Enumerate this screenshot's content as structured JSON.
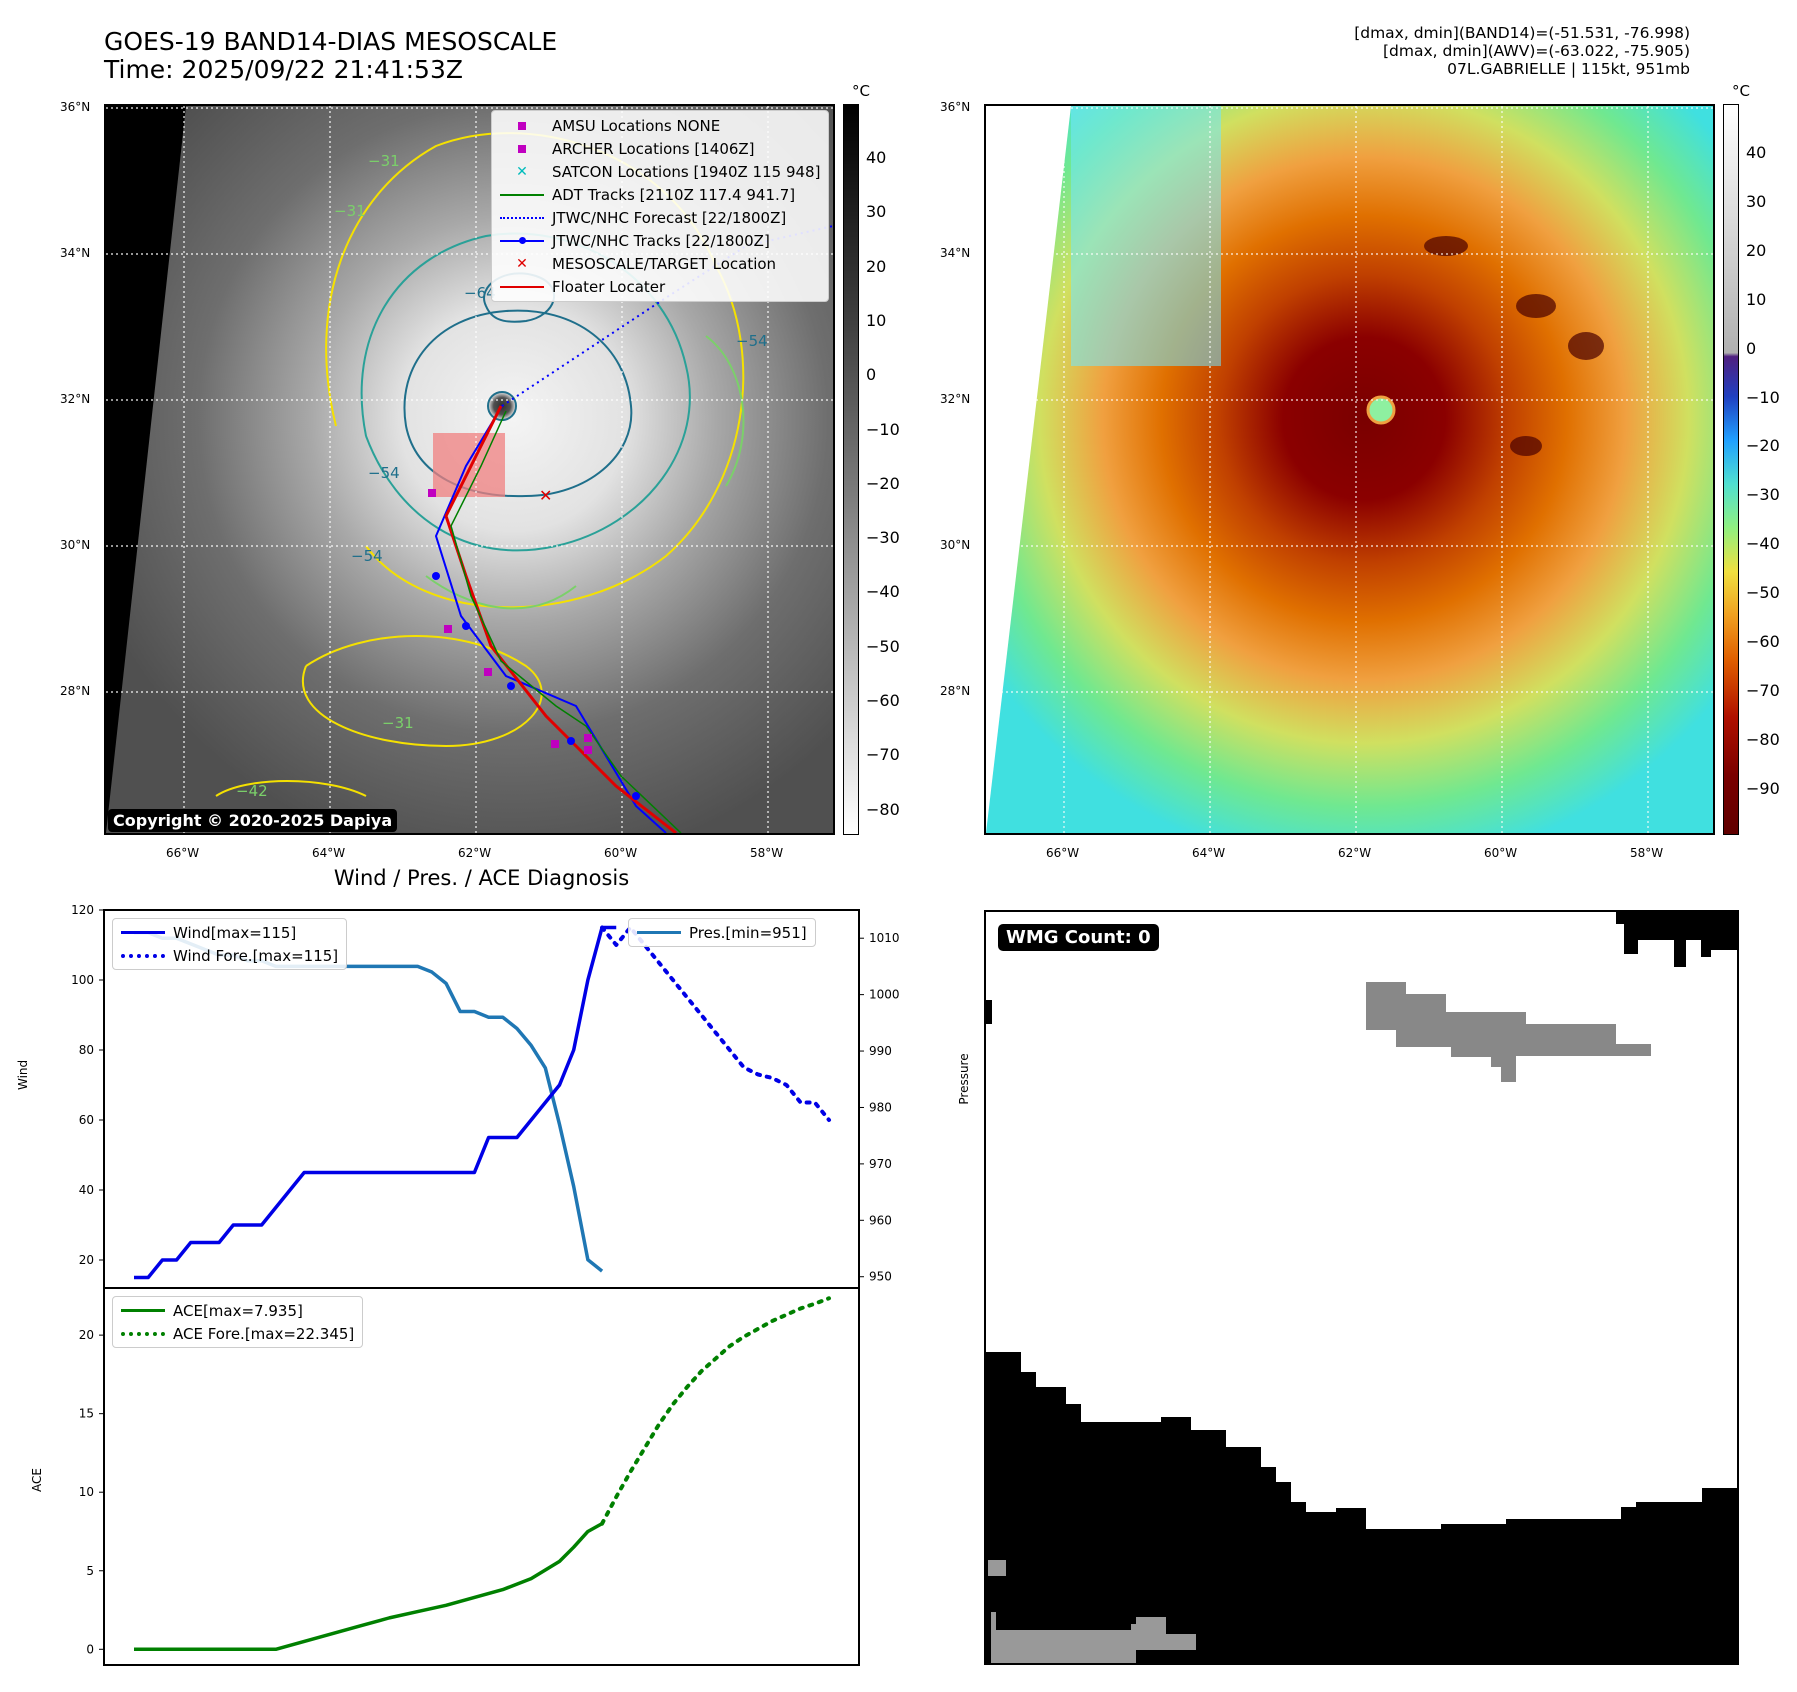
{
  "header": {
    "title_line1": "GOES-19 BAND14-DIAS MESOSCALE",
    "title_line2": "Time: 2025/09/22 21:41:53Z",
    "info_line1": "[dmax, dmin](BAND14)=(-51.531, -76.998)",
    "info_line2": "[dmax, dmin](AWV)=(-63.022, -75.905)",
    "info_line3": "07L.GABRIELLE | 115kt, 951mb"
  },
  "map_axes": {
    "lat_labels": [
      "36°N",
      "34°N",
      "32°N",
      "30°N",
      "28°N"
    ],
    "lon_labels": [
      "66°W",
      "64°W",
      "62°W",
      "60°W",
      "58°W"
    ]
  },
  "colorbar_gray": {
    "unit": "°C",
    "ticks": [
      "40",
      "30",
      "20",
      "10",
      "0",
      "−10",
      "−20",
      "−30",
      "−40",
      "−50",
      "−60",
      "−70",
      "−80"
    ]
  },
  "colorbar_color": {
    "unit": "°C",
    "ticks": [
      "40",
      "30",
      "20",
      "10",
      "0",
      "−10",
      "−20",
      "−30",
      "−40",
      "−50",
      "−60",
      "−70",
      "−80",
      "−90"
    ]
  },
  "map_legend": [
    {
      "label": "AMSU Locations NONE",
      "symbol": "square",
      "color": "#c000c0"
    },
    {
      "label": "ARCHER Locations [1406Z]",
      "symbol": "square",
      "color": "#c000c0"
    },
    {
      "label": "SATCON Locations [1940Z 115 948]",
      "symbol": "x",
      "color": "#00bcbc"
    },
    {
      "label": "ADT Tracks [2110Z 117.4 941.7]",
      "symbol": "line",
      "color": "#008000"
    },
    {
      "label": "JTWC/NHC Forecast [22/1800Z]",
      "symbol": "dotted",
      "color": "#0000ff"
    },
    {
      "label": "JTWC/NHC Tracks [22/1800Z]",
      "symbol": "line-dot",
      "color": "#0000ff"
    },
    {
      "label": "MESOSCALE/TARGET Location",
      "symbol": "x",
      "color": "#e00000"
    },
    {
      "label": "Floater Locater",
      "symbol": "line",
      "color": "#e00000"
    }
  ],
  "contour_labels": [
    "−64",
    "−54",
    "−54",
    "−54",
    "−31",
    "−31",
    "−31",
    "−42"
  ],
  "copyright": "Copyright © 2020-2025 Dapiya",
  "wmg": {
    "label": "WMG Count: 0"
  },
  "colors": {
    "wind": "#0000e6",
    "pressure": "#1f77b4",
    "ace": "#008000"
  },
  "chart_data": [
    {
      "type": "line",
      "title": "Wind / Pres. / ACE Diagnosis",
      "ylabel": "Wind",
      "y2label": "Pressure",
      "ylim": [
        12,
        120
      ],
      "y2lim": [
        948,
        1015
      ],
      "yticks": [
        20,
        40,
        60,
        80,
        100,
        120
      ],
      "y2ticks": [
        950,
        960,
        970,
        980,
        990,
        1000,
        1010
      ],
      "x_count": 50,
      "series": [
        {
          "name": "Wind[max=115]",
          "axis": "left",
          "style": "solid",
          "color": "#0000e6",
          "x": [
            0,
            1,
            2,
            3,
            4,
            5,
            6,
            7,
            8,
            9,
            10,
            11,
            12,
            13,
            14,
            15,
            16,
            17,
            18,
            19,
            20,
            21,
            22,
            23,
            24,
            25,
            26,
            27,
            28,
            29,
            30,
            31,
            32,
            33,
            34
          ],
          "values": [
            15,
            15,
            20,
            20,
            25,
            25,
            25,
            30,
            30,
            30,
            35,
            40,
            45,
            45,
            45,
            45,
            45,
            45,
            45,
            45,
            45,
            45,
            45,
            45,
            45,
            55,
            55,
            55,
            60,
            65,
            70,
            80,
            100,
            115,
            115
          ]
        },
        {
          "name": "Wind Fore.[max=115]",
          "axis": "left",
          "style": "dotted",
          "color": "#0000e6",
          "x": [
            33,
            34,
            35,
            36,
            37,
            38,
            39,
            40,
            41,
            42,
            43,
            44,
            45,
            46,
            47,
            48,
            49
          ],
          "values": [
            115,
            110,
            115,
            110,
            105,
            100,
            95,
            90,
            85,
            80,
            75,
            73,
            72,
            70,
            65,
            65,
            60
          ]
        },
        {
          "name": "Pres.[min=951]",
          "axis": "right",
          "style": "solid",
          "color": "#1f77b4",
          "x": [
            0,
            1,
            2,
            3,
            4,
            5,
            6,
            7,
            8,
            9,
            10,
            11,
            12,
            13,
            14,
            15,
            16,
            17,
            18,
            19,
            20,
            21,
            22,
            23,
            24,
            25,
            26,
            27,
            28,
            29,
            30,
            31,
            32,
            33
          ],
          "values": [
            1011,
            1011,
            1010,
            1010,
            1009,
            1008,
            1007,
            1007,
            1006,
            1006,
            1005,
            1005,
            1005,
            1005,
            1005,
            1005,
            1005,
            1005,
            1005,
            1005,
            1005,
            1004,
            1002,
            997,
            997,
            996,
            996,
            994,
            991,
            987,
            977,
            966,
            953,
            951
          ]
        }
      ]
    },
    {
      "type": "line",
      "ylabel": "ACE",
      "ylim": [
        -1,
        23
      ],
      "yticks": [
        0,
        5,
        10,
        15,
        20
      ],
      "x_count": 50,
      "series": [
        {
          "name": "ACE[max=7.935]",
          "style": "solid",
          "color": "#008000",
          "x": [
            0,
            2,
            4,
            6,
            8,
            10,
            12,
            14,
            16,
            18,
            20,
            22,
            24,
            26,
            28,
            30,
            31,
            32,
            33
          ],
          "values": [
            0,
            0,
            0,
            0,
            0,
            0,
            0.5,
            1.0,
            1.5,
            2.0,
            2.4,
            2.8,
            3.3,
            3.8,
            4.5,
            5.6,
            6.5,
            7.5,
            8.0
          ]
        },
        {
          "name": "ACE Fore.[max=22.345]",
          "style": "dotted",
          "color": "#008000",
          "x": [
            33,
            34,
            35,
            36,
            37,
            38,
            39,
            40,
            41,
            42,
            43,
            44,
            45,
            46,
            47,
            48,
            49
          ],
          "values": [
            8.0,
            9.7,
            11.3,
            12.8,
            14.3,
            15.6,
            16.7,
            17.7,
            18.5,
            19.3,
            19.9,
            20.4,
            20.9,
            21.3,
            21.7,
            22.0,
            22.345
          ]
        }
      ]
    }
  ]
}
